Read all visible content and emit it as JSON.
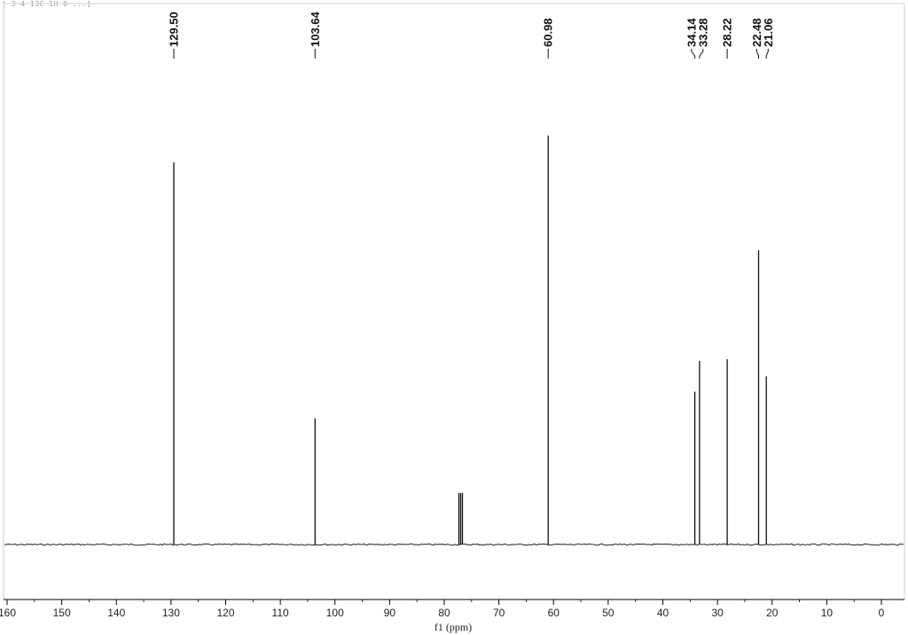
{
  "header_text": "[ 3  4 13C 1H 0 ...]",
  "chart_data": {
    "type": "line",
    "title": "",
    "xlabel": "f1 (ppm)",
    "ylabel": "",
    "xlim": [
      161.5,
      -4.5
    ],
    "x_reversed": true,
    "grid": false,
    "xticks": [
      160,
      150,
      140,
      130,
      120,
      110,
      100,
      90,
      80,
      70,
      60,
      50,
      40,
      30,
      20,
      10,
      0
    ],
    "peaks": [
      {
        "ppm": 129.5,
        "height": 1.0,
        "label": "129.50"
      },
      {
        "ppm": 103.64,
        "height": 0.33,
        "label": "103.64"
      },
      {
        "ppm": 77.32,
        "height": 0.135,
        "label": ""
      },
      {
        "ppm": 77.0,
        "height": 0.135,
        "label": ""
      },
      {
        "ppm": 76.68,
        "height": 0.135,
        "label": ""
      },
      {
        "ppm": 60.98,
        "height": 1.07,
        "label": "60.98"
      },
      {
        "ppm": 34.14,
        "height": 0.4,
        "label": "34.14"
      },
      {
        "ppm": 33.28,
        "height": 0.48,
        "label": "33.28"
      },
      {
        "ppm": 28.22,
        "height": 0.485,
        "label": "28.22"
      },
      {
        "ppm": 22.48,
        "height": 0.77,
        "label": "22.48"
      },
      {
        "ppm": 21.06,
        "height": 0.44,
        "label": "21.06"
      }
    ]
  }
}
